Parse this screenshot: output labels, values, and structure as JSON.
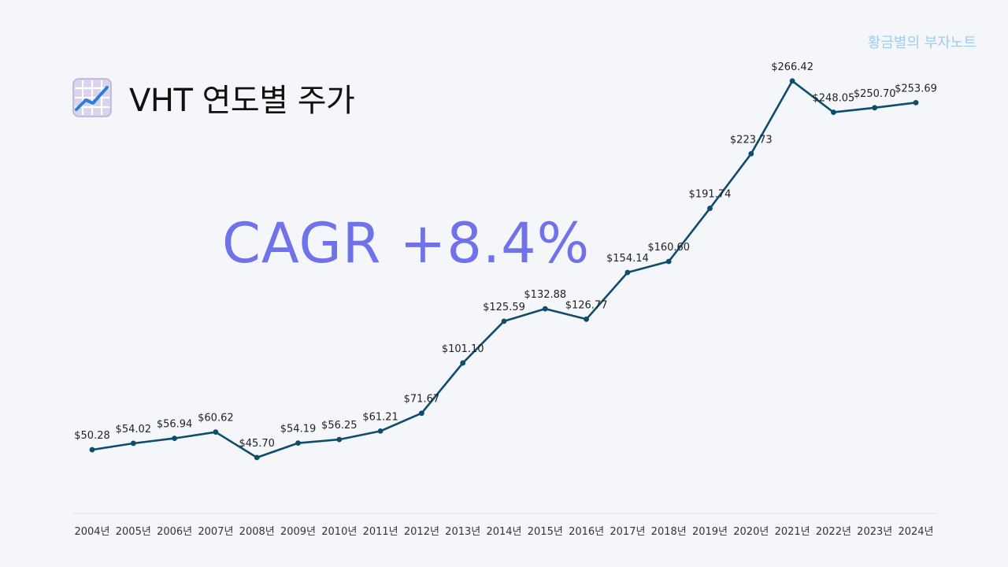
{
  "watermark": "황금별의 부자노트",
  "header": {
    "icon": "chart-increasing-icon",
    "title": "VHT 연도별 주가"
  },
  "cagr_text": "CAGR +8.4%",
  "colors": {
    "line": "#0e4d6b",
    "cagr": "#6f72e8",
    "watermark": "#9fcdeb",
    "background": "#f4f6fa"
  },
  "chart_data": {
    "type": "line",
    "title": "VHT 연도별 주가",
    "xlabel": "",
    "ylabel": "",
    "ylim": [
      0,
      300
    ],
    "grid": false,
    "categories": [
      "2004년",
      "2005년",
      "2006년",
      "2007년",
      "2008년",
      "2009년",
      "2010년",
      "2011년",
      "2012년",
      "2013년",
      "2014년",
      "2015년",
      "2016년",
      "2017년",
      "2018년",
      "2019년",
      "2020년",
      "2021년",
      "2022년",
      "2023년",
      "2024년"
    ],
    "values": [
      50.28,
      54.02,
      56.94,
      60.62,
      45.7,
      54.19,
      56.25,
      61.21,
      71.67,
      101.1,
      125.59,
      132.88,
      126.77,
      154.14,
      160.6,
      191.74,
      223.73,
      266.42,
      248.05,
      250.7,
      253.69
    ],
    "value_labels": [
      "$50.28",
      "$54.02",
      "$56.94",
      "$60.62",
      "$45.70",
      "$54.19",
      "$56.25",
      "$61.21",
      "$71.67",
      "$101.10",
      "$125.59",
      "$132.88",
      "$126.77",
      "$154.14",
      "$160.60",
      "$191.74",
      "$223.73",
      "$266.42",
      "$248.05",
      "$250.70",
      "$253.69"
    ]
  }
}
